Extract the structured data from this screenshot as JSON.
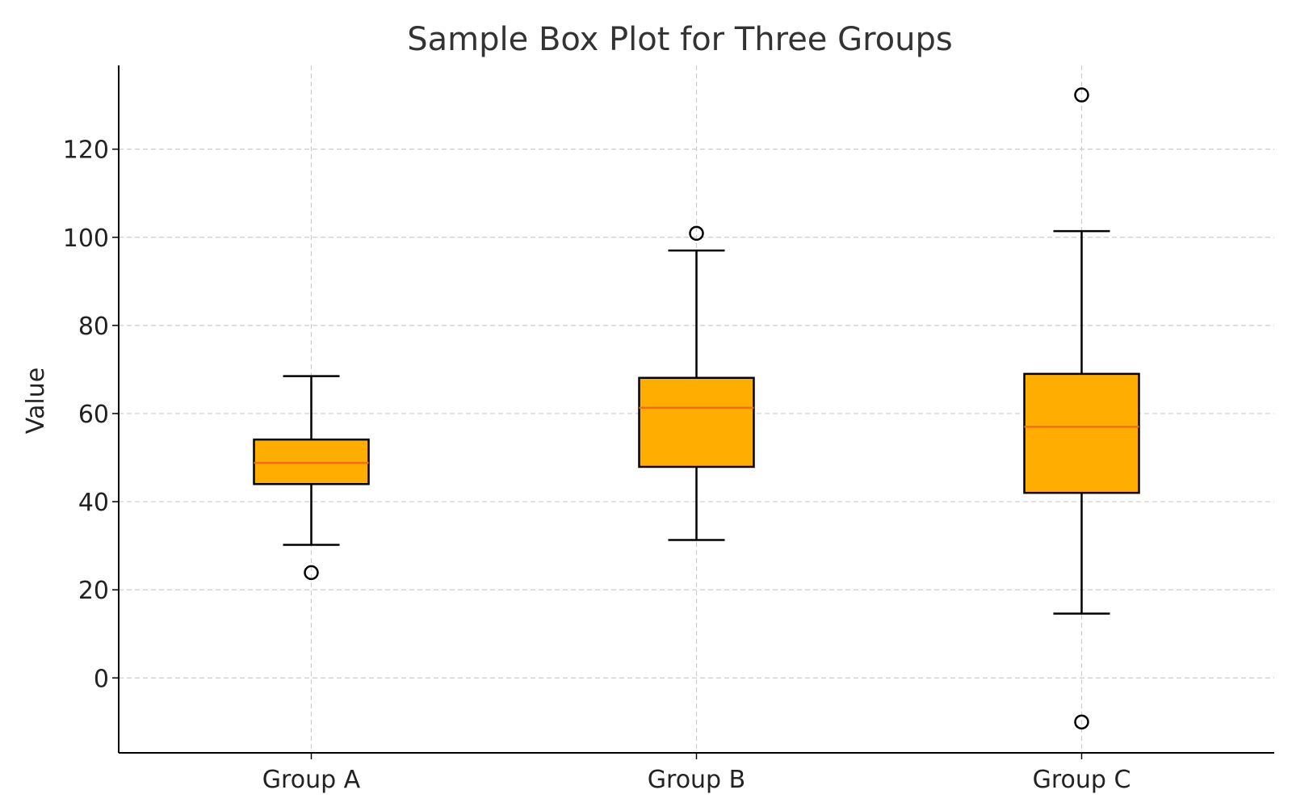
{
  "chart_data": {
    "type": "box",
    "title": "Sample Box Plot for Three Groups",
    "xlabel": "",
    "ylabel": "Value",
    "ylim": [
      -17,
      139
    ],
    "yticks": [
      0,
      20,
      40,
      60,
      80,
      100,
      120
    ],
    "grid": true,
    "colors": {
      "box_fill": "#FFAE00",
      "median": "#F26B21",
      "edge": "#000000",
      "grid": "#CCCCCC"
    },
    "categories": [
      "Group A",
      "Group B",
      "Group C"
    ],
    "boxes": [
      {
        "category": "Group A",
        "whisker_low": 30.2,
        "q1": 44.0,
        "median": 48.8,
        "q3": 54.1,
        "whisker_high": 68.5,
        "outliers": [
          23.9
        ]
      },
      {
        "category": "Group B",
        "whisker_low": 31.3,
        "q1": 47.9,
        "median": 61.3,
        "q3": 68.1,
        "whisker_high": 97.0,
        "outliers": [
          100.9
        ]
      },
      {
        "category": "Group C",
        "whisker_low": 14.6,
        "q1": 42.0,
        "median": 57.0,
        "q3": 69.0,
        "whisker_high": 101.4,
        "outliers": [
          132.3,
          -10.0
        ]
      }
    ]
  }
}
